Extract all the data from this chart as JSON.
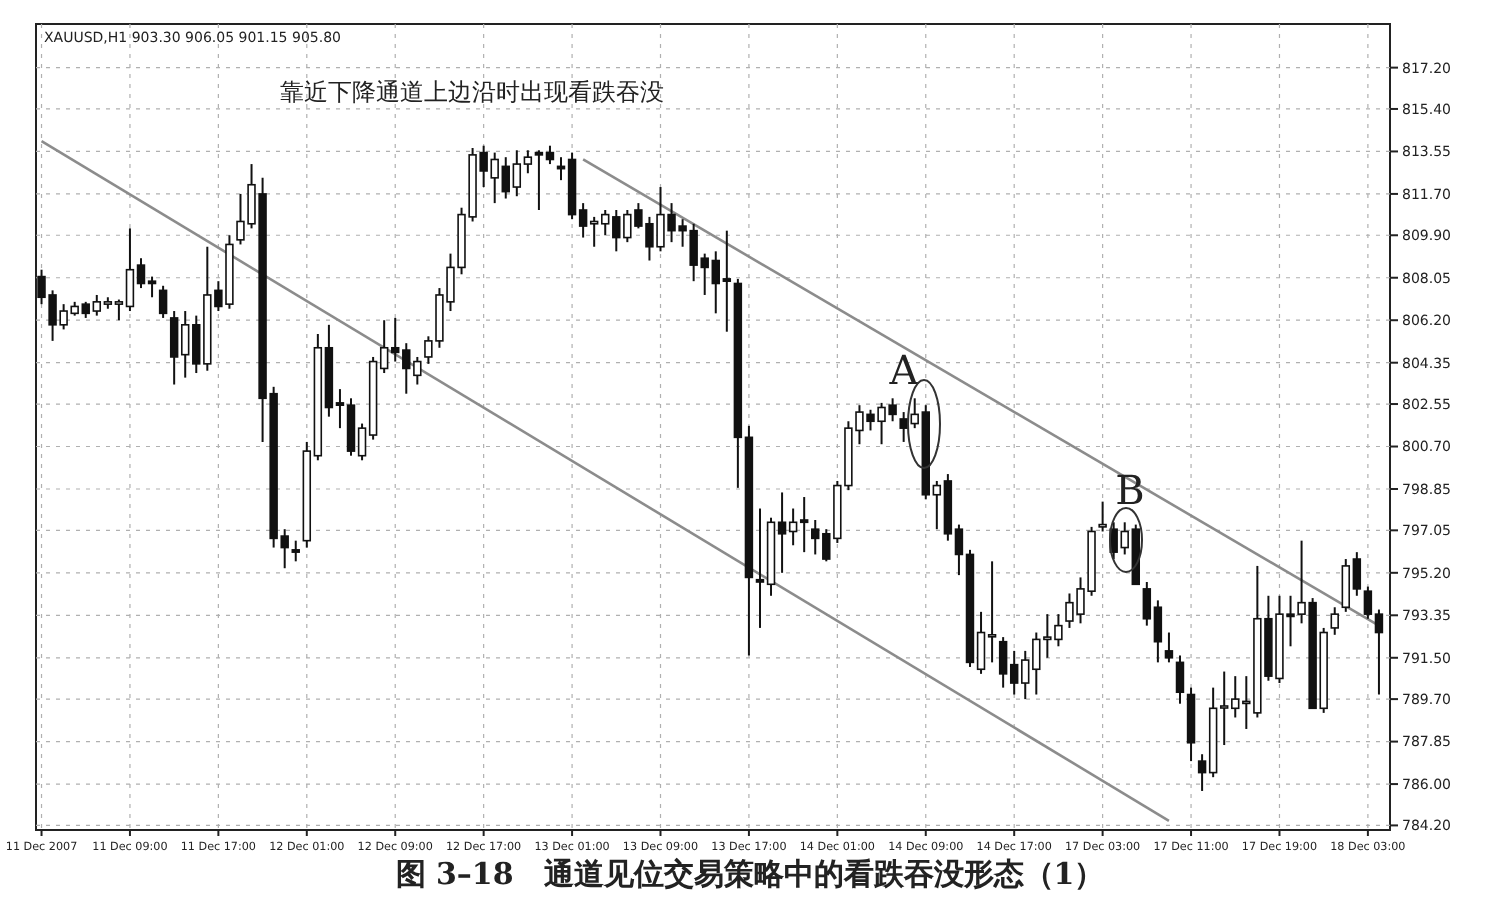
{
  "chart_data": {
    "type": "candlestick",
    "title": "图 3–18　通道见位交易策略中的看跌吞没形态（1）",
    "subtitle": "XAUUSD,H1  903.30 906.05 901.15 905.80",
    "categories": [
      "11 Dec 2007",
      null,
      null,
      null,
      null,
      null,
      null,
      null,
      "11 Dec 09:00",
      null,
      null,
      null,
      null,
      null,
      null,
      null,
      "11 Dec 17:00",
      null,
      null,
      null,
      null,
      null,
      null,
      null,
      "12 Dec 01:00",
      null,
      null,
      null,
      null,
      null,
      null,
      null,
      "12 Dec 09:00",
      null,
      null,
      null,
      null,
      null,
      null,
      null,
      "12 Dec 17:00",
      null,
      null,
      null,
      null,
      null,
      null,
      null,
      "13 Dec 01:00",
      null,
      null,
      null,
      null,
      null,
      null,
      null,
      "13 Dec 09:00",
      null,
      null,
      null,
      null,
      null,
      null,
      null,
      "13 Dec 17:00",
      null,
      null,
      null,
      null,
      null,
      null,
      null,
      "14 Dec 01:00",
      null,
      null,
      null,
      null,
      null,
      null,
      null,
      "14 Dec 09:00",
      null,
      null,
      null,
      null,
      null,
      null,
      null,
      "14 Dec 17:00",
      null,
      null,
      null,
      null,
      null,
      null,
      null,
      "17 Dec 03:00",
      null,
      null,
      null,
      null,
      null,
      null,
      null,
      "17 Dec 11:00",
      null,
      null,
      null,
      null,
      null,
      null,
      null,
      "17 Dec 19:00",
      null,
      null,
      null,
      null,
      null,
      null,
      null,
      "18 Dec 03:00",
      null
    ],
    "ohlc": [
      [
        808.1,
        808.4,
        806.9,
        807.2
      ],
      [
        807.3,
        807.5,
        805.3,
        806.0
      ],
      [
        806.0,
        806.9,
        805.8,
        806.6
      ],
      [
        806.5,
        807.0,
        806.4,
        806.8
      ],
      [
        806.9,
        807.0,
        806.3,
        806.5
      ],
      [
        806.6,
        807.3,
        806.4,
        807.0
      ],
      [
        806.9,
        807.2,
        806.7,
        807.0
      ],
      [
        806.9,
        807.1,
        806.2,
        807.0
      ],
      [
        806.8,
        810.2,
        806.6,
        808.4
      ],
      [
        808.6,
        808.9,
        807.6,
        807.8
      ],
      [
        807.9,
        808.1,
        807.2,
        807.8
      ],
      [
        807.5,
        807.7,
        806.3,
        806.5
      ],
      [
        806.3,
        806.6,
        803.4,
        804.6
      ],
      [
        804.7,
        806.6,
        803.7,
        806.0
      ],
      [
        806.0,
        806.4,
        803.9,
        804.3
      ],
      [
        804.3,
        809.4,
        804.0,
        807.3
      ],
      [
        807.5,
        807.9,
        806.6,
        806.8
      ],
      [
        806.9,
        809.9,
        806.7,
        809.5
      ],
      [
        809.7,
        811.7,
        809.5,
        810.5
      ],
      [
        810.4,
        813.0,
        810.2,
        812.1
      ],
      [
        811.7,
        812.4,
        800.9,
        802.8
      ],
      [
        803.0,
        803.3,
        796.3,
        796.7
      ],
      [
        796.8,
        797.1,
        795.4,
        796.3
      ],
      [
        796.2,
        796.6,
        795.7,
        796.1
      ],
      [
        796.6,
        800.9,
        796.3,
        800.5
      ],
      [
        800.3,
        805.6,
        800.1,
        805.0
      ],
      [
        805.0,
        806.0,
        802.0,
        802.4
      ],
      [
        802.6,
        803.2,
        801.5,
        802.5
      ],
      [
        802.5,
        802.8,
        800.3,
        800.5
      ],
      [
        800.3,
        801.7,
        800.1,
        801.5
      ],
      [
        801.2,
        804.6,
        801.0,
        804.4
      ],
      [
        804.1,
        806.2,
        803.9,
        805.0
      ],
      [
        805.0,
        806.3,
        804.4,
        804.8
      ],
      [
        804.9,
        805.2,
        803.0,
        804.1
      ],
      [
        803.8,
        804.6,
        803.4,
        804.4
      ],
      [
        804.6,
        805.5,
        804.3,
        805.3
      ],
      [
        805.3,
        807.6,
        805.0,
        807.3
      ],
      [
        807.0,
        809.1,
        806.6,
        808.5
      ],
      [
        808.5,
        811.1,
        808.2,
        810.8
      ],
      [
        810.7,
        813.7,
        810.5,
        813.4
      ],
      [
        813.5,
        813.8,
        812.0,
        812.7
      ],
      [
        812.4,
        813.5,
        811.3,
        813.2
      ],
      [
        812.9,
        813.3,
        811.5,
        811.8
      ],
      [
        812.0,
        813.6,
        811.6,
        813.0
      ],
      [
        813.0,
        813.6,
        812.6,
        813.3
      ],
      [
        813.5,
        813.6,
        811.0,
        813.4
      ],
      [
        813.5,
        813.8,
        813.0,
        813.2
      ],
      [
        812.9,
        813.3,
        812.3,
        812.8
      ],
      [
        813.2,
        813.5,
        810.6,
        810.8
      ],
      [
        811.0,
        811.3,
        809.8,
        810.3
      ],
      [
        810.4,
        810.7,
        809.4,
        810.5
      ],
      [
        810.4,
        811.0,
        809.9,
        810.8
      ],
      [
        810.7,
        811.0,
        809.2,
        809.8
      ],
      [
        809.8,
        811.0,
        809.6,
        810.8
      ],
      [
        811.0,
        811.3,
        810.2,
        810.3
      ],
      [
        810.4,
        810.7,
        808.8,
        809.4
      ],
      [
        809.4,
        812.0,
        809.2,
        810.8
      ],
      [
        810.8,
        811.3,
        809.6,
        810.1
      ],
      [
        810.3,
        810.6,
        809.4,
        810.1
      ],
      [
        810.1,
        810.4,
        807.9,
        808.6
      ],
      [
        808.9,
        809.1,
        807.3,
        808.5
      ],
      [
        808.8,
        809.2,
        806.5,
        807.8
      ],
      [
        808.0,
        810.1,
        805.7,
        807.9
      ],
      [
        807.8,
        808.0,
        798.9,
        801.1
      ],
      [
        801.1,
        801.6,
        791.6,
        795.0
      ],
      [
        794.9,
        798.0,
        792.8,
        794.8
      ],
      [
        794.7,
        797.6,
        794.2,
        797.4
      ],
      [
        797.4,
        798.7,
        795.2,
        796.9
      ],
      [
        797.0,
        798.0,
        796.4,
        797.4
      ],
      [
        797.5,
        798.5,
        796.1,
        797.4
      ],
      [
        797.1,
        797.5,
        796.0,
        796.7
      ],
      [
        796.9,
        797.1,
        795.7,
        795.8
      ],
      [
        796.7,
        799.2,
        796.5,
        799.0
      ],
      [
        799.0,
        801.8,
        798.8,
        801.5
      ],
      [
        801.4,
        802.5,
        800.8,
        802.2
      ],
      [
        802.1,
        802.3,
        801.4,
        801.8
      ],
      [
        801.8,
        802.6,
        800.8,
        802.4
      ],
      [
        802.5,
        802.8,
        801.8,
        802.1
      ],
      [
        801.9,
        802.2,
        800.9,
        801.5
      ],
      [
        801.7,
        802.8,
        801.5,
        802.1
      ],
      [
        802.2,
        802.5,
        798.4,
        798.6
      ],
      [
        798.6,
        799.2,
        797.1,
        799.0
      ],
      [
        799.2,
        799.5,
        796.6,
        796.9
      ],
      [
        797.1,
        797.3,
        795.1,
        796.0
      ],
      [
        796.0,
        796.2,
        791.1,
        791.3
      ],
      [
        791.0,
        793.5,
        790.8,
        792.6
      ],
      [
        792.5,
        795.7,
        791.3,
        792.5
      ],
      [
        792.2,
        792.4,
        790.2,
        790.8
      ],
      [
        791.2,
        791.8,
        789.9,
        790.4
      ],
      [
        790.4,
        791.8,
        789.7,
        791.4
      ],
      [
        791.0,
        792.6,
        789.9,
        792.3
      ],
      [
        792.3,
        793.4,
        791.5,
        792.4
      ],
      [
        792.3,
        793.4,
        792.0,
        792.9
      ],
      [
        793.1,
        794.3,
        792.8,
        793.9
      ],
      [
        793.4,
        795.0,
        793.0,
        794.5
      ],
      [
        794.4,
        797.2,
        794.2,
        797.0
      ],
      [
        797.2,
        798.3,
        797.0,
        797.3
      ],
      [
        797.1,
        797.4,
        795.8,
        796.1
      ],
      [
        796.3,
        797.4,
        796.0,
        797.0
      ],
      [
        797.1,
        797.3,
        794.7,
        794.7
      ],
      [
        794.5,
        794.8,
        792.9,
        793.2
      ],
      [
        793.7,
        794.0,
        791.3,
        792.2
      ],
      [
        791.8,
        792.6,
        791.3,
        791.5
      ],
      [
        791.3,
        791.6,
        789.5,
        790.0
      ],
      [
        789.9,
        790.2,
        787.0,
        787.8
      ],
      [
        787.0,
        787.3,
        785.7,
        786.5
      ],
      [
        786.5,
        790.2,
        786.3,
        789.3
      ],
      [
        789.4,
        790.9,
        787.7,
        789.4
      ],
      [
        789.3,
        790.7,
        788.9,
        789.7
      ],
      [
        789.6,
        790.7,
        788.4,
        789.6
      ],
      [
        789.1,
        795.5,
        788.9,
        793.2
      ],
      [
        793.2,
        794.2,
        790.5,
        790.7
      ],
      [
        790.6,
        794.2,
        790.4,
        793.4
      ],
      [
        793.4,
        794.2,
        792.0,
        793.3
      ],
      [
        793.4,
        796.6,
        793.0,
        793.9
      ],
      [
        793.9,
        794.1,
        789.3,
        789.3
      ],
      [
        789.3,
        792.8,
        789.1,
        792.6
      ],
      [
        792.8,
        793.7,
        792.5,
        793.4
      ],
      [
        793.7,
        795.8,
        793.5,
        795.5
      ],
      [
        795.8,
        796.1,
        794.2,
        794.5
      ],
      [
        794.4,
        794.6,
        793.2,
        793.4
      ],
      [
        793.4,
        793.6,
        789.9,
        792.6
      ]
    ],
    "series": [
      {
        "type": "line",
        "values": [
          null,
          null,
          null,
          null,
          null,
          null,
          null,
          null,
          null,
          null,
          null,
          null,
          null,
          null,
          null,
          null,
          null,
          null,
          null,
          null,
          null,
          null,
          null,
          null,
          null,
          null,
          null,
          null,
          null,
          null,
          null,
          null,
          null,
          null,
          null,
          null,
          null,
          null,
          null,
          null,
          null,
          null,
          null,
          null,
          null,
          null,
          null,
          null,
          null,
          813.2,
          null,
          null,
          null,
          null,
          null,
          null,
          null,
          null,
          null,
          null,
          null,
          null,
          null,
          null,
          null,
          null,
          null,
          null,
          null,
          null,
          null,
          null,
          null,
          null,
          null,
          null,
          null,
          null,
          null,
          null,
          null,
          null,
          null,
          null,
          null,
          null,
          null,
          null,
          null,
          null,
          null,
          null,
          null,
          null,
          null,
          null,
          null,
          null,
          null,
          null,
          null,
          null,
          null,
          null,
          null,
          null,
          null,
          null,
          null,
          null,
          null,
          null,
          null,
          null,
          null,
          null,
          null,
          null,
          null,
          null,
          null,
          792.9
        ],
        "color": "#8c8c8c"
      },
      {
        "type": "line",
        "values": [
          814.0,
          null,
          null,
          null,
          null,
          null,
          null,
          null,
          null,
          null,
          null,
          null,
          null,
          null,
          null,
          null,
          null,
          null,
          null,
          null,
          null,
          null,
          null,
          null,
          null,
          null,
          null,
          null,
          null,
          null,
          null,
          null,
          null,
          null,
          null,
          null,
          null,
          null,
          null,
          null,
          null,
          null,
          null,
          null,
          null,
          null,
          null,
          null,
          null,
          null,
          null,
          null,
          null,
          null,
          null,
          null,
          null,
          null,
          null,
          null,
          null,
          null,
          null,
          null,
          null,
          null,
          null,
          null,
          null,
          null,
          null,
          null,
          null,
          null,
          null,
          null,
          null,
          null,
          null,
          null,
          null,
          null,
          null,
          null,
          null,
          null,
          null,
          null,
          null,
          null,
          null,
          null,
          null,
          null,
          null,
          null,
          null,
          null,
          null,
          null,
          null,
          null,
          784.4,
          null,
          null,
          null,
          null,
          null,
          null,
          null,
          null,
          null,
          null,
          null,
          null,
          null,
          null,
          null,
          null,
          null,
          null,
          null
        ],
        "color": "#8c8c8c"
      }
    ],
    "ylim": [
      784.0,
      819.1
    ],
    "yticks": [
      {
        "value": 817.2,
        "label": "817.20"
      },
      {
        "value": 815.4,
        "label": "815.40"
      },
      {
        "value": 813.55,
        "label": "813.55"
      },
      {
        "value": 811.7,
        "label": "811.70"
      },
      {
        "value": 809.9,
        "label": "809.90"
      },
      {
        "value": 808.05,
        "label": "808.05"
      },
      {
        "value": 806.2,
        "label": "806.20"
      },
      {
        "value": 804.35,
        "label": "804.35"
      },
      {
        "value": 802.55,
        "label": "802.55"
      },
      {
        "value": 800.7,
        "label": "800.70"
      },
      {
        "value": 798.85,
        "label": "798.85"
      },
      {
        "value": 797.05,
        "label": "797.05"
      },
      {
        "value": 795.2,
        "label": "795.20"
      },
      {
        "value": 793.35,
        "label": "793.35"
      },
      {
        "value": 791.5,
        "label": "791.50"
      },
      {
        "value": 789.7,
        "label": "789.70"
      },
      {
        "value": 787.85,
        "label": "787.85"
      },
      {
        "value": 786.0,
        "label": "786.00"
      },
      {
        "value": 784.2,
        "label": "784.20"
      }
    ],
    "grid": true,
    "annotations": [
      "靠近下降通道上边沿时出现看跌吞没",
      "A",
      "B"
    ]
  }
}
